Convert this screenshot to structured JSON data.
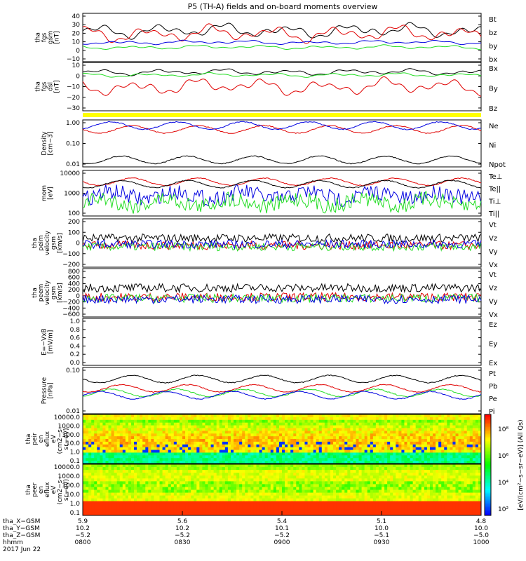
{
  "title": "P5 (TH-A) fields and on-board moments overview",
  "colors": {
    "black": "#000000",
    "red": "#e00000",
    "green": "#22dd22",
    "blue": "#0000e0",
    "yellow": "#ffff00"
  },
  "chart_data": [
    {
      "type": "line",
      "panel": "fgs_gsm",
      "ylabel": [
        "tha",
        "fgs",
        "gsm",
        "[nT]"
      ],
      "yticks": [
        "40",
        "30",
        "20",
        "10",
        "0",
        "−10"
      ],
      "ylim": [
        -10,
        40
      ],
      "series": [
        {
          "name": "Bt",
          "color": "#000000",
          "base": 22,
          "amp": 7
        },
        {
          "name": "bz",
          "color": "#e00000",
          "base": 19,
          "amp": 8
        },
        {
          "name": "by",
          "color": "#22dd22",
          "base": 5,
          "amp": 2
        },
        {
          "name": "bx",
          "color": "#0000e0",
          "base": 10,
          "amp": 2
        }
      ]
    },
    {
      "type": "line",
      "panel": "fgs_dsl",
      "ylabel": [
        "tha",
        "fgs",
        "dsl",
        "[nT]"
      ],
      "yticks": [
        "10",
        "0",
        "−10",
        "−20",
        "−30"
      ],
      "ylim": [
        -35,
        15
      ],
      "series": [
        {
          "name": "Bx",
          "color": "#000000",
          "base": 5,
          "amp": 3
        },
        {
          "name": "By",
          "color": "#22dd22",
          "base": 2,
          "amp": 2
        },
        {
          "name": "Bz",
          "color": "#e00000",
          "base": -10,
          "amp": 8
        }
      ]
    },
    {
      "type": "line",
      "panel": "density",
      "ylabel": [
        "Density",
        "[cm−3]"
      ],
      "yticks": [
        "1.00",
        "0.10",
        "0.01"
      ],
      "ylog": true,
      "series": [
        {
          "name": "Ne",
          "color": "#e00000"
        },
        {
          "name": "Ni",
          "color": "#000000"
        },
        {
          "name": "Npot",
          "color": "#0000e0"
        }
      ]
    },
    {
      "type": "line",
      "panel": "temperature",
      "ylabel": [
        "mom",
        "[eV]"
      ],
      "yticks": [
        "10000",
        "1000",
        "100"
      ],
      "ylog": true,
      "series": [
        {
          "name": "Te⊥",
          "color": "#e00000"
        },
        {
          "name": "Te||",
          "color": "#000000"
        },
        {
          "name": "Ti⊥",
          "color": "#0000e0"
        },
        {
          "name": "Ti||",
          "color": "#22dd22"
        }
      ]
    },
    {
      "type": "line",
      "panel": "peim_velocity",
      "ylabel": [
        "tha",
        "peim",
        "velocity",
        "gsm",
        "[km/s]"
      ],
      "yticks": [
        "200",
        "100",
        "0",
        "−100",
        "−200"
      ],
      "ylim": [
        -200,
        200
      ],
      "series": [
        {
          "name": "Vt",
          "color": "#000000",
          "base": 40
        },
        {
          "name": "Vz",
          "color": "#e00000",
          "base": -20
        },
        {
          "name": "Vy",
          "color": "#22dd22",
          "base": -30
        },
        {
          "name": "Vx",
          "color": "#0000e0",
          "base": -10
        }
      ]
    },
    {
      "type": "line",
      "panel": "peem_velocity",
      "ylabel": [
        "tha",
        "peem",
        "velocity",
        "gsm",
        "[km/s]"
      ],
      "yticks": [
        "800",
        "600",
        "400",
        "200",
        "0",
        "−200",
        "−400",
        "−600"
      ],
      "ylim": [
        -700,
        800
      ],
      "series": [
        {
          "name": "Vt",
          "color": "#000000",
          "base": 200
        },
        {
          "name": "Vz",
          "color": "#e00000",
          "base": -80
        },
        {
          "name": "Vy",
          "color": "#22dd22",
          "base": -120
        },
        {
          "name": "Vx",
          "color": "#0000e0",
          "base": -150
        }
      ]
    },
    {
      "type": "line",
      "panel": "efield",
      "ylabel": [
        "E=−VxB",
        "[mV/m]"
      ],
      "yticks": [
        "1.0",
        "0.8",
        "0.6",
        "0.4",
        "0.2",
        "0.0"
      ],
      "ylim": [
        0,
        1
      ],
      "series": [
        {
          "name": "Ez",
          "color": "#e00000"
        },
        {
          "name": "Ey",
          "color": "#22dd22"
        },
        {
          "name": "Ex",
          "color": "#0000e0"
        }
      ]
    },
    {
      "type": "line",
      "panel": "pressure",
      "ylabel": [
        "Pressure",
        "[nPa]"
      ],
      "yticks": [
        "0.10",
        "0.01"
      ],
      "ylog": true,
      "series": [
        {
          "name": "Pt",
          "color": "#000000"
        },
        {
          "name": "Pb",
          "color": "#e00000"
        },
        {
          "name": "Pe",
          "color": "#22dd22"
        },
        {
          "name": "Pi",
          "color": "#0000e0"
        }
      ]
    },
    {
      "type": "heatmap",
      "panel": "peir_spectrogram",
      "ylabel": [
        "tha",
        "peir",
        "en",
        "eflux",
        "eV",
        "(cm2−s−",
        "sr−eV)"
      ],
      "yticks": [
        "10000.0",
        "1000.0",
        "100.0",
        "10.0",
        "1.0",
        "0.1"
      ]
    },
    {
      "type": "heatmap",
      "panel": "peer_spectrogram",
      "ylabel": [
        "tha",
        "peer",
        "en",
        "eflux",
        "eV",
        "(cm2−s−",
        "sr−eV)"
      ],
      "yticks": [
        "10000.0",
        "1000.0",
        "100.0",
        "10.0",
        "1.0",
        "0.1"
      ]
    }
  ],
  "colorbar": {
    "ticks": [
      "10⁸",
      "10⁶",
      "10⁴",
      "10²"
    ],
    "label": "[eV/(cm²−s−sr−eV)] (All Qs)"
  },
  "xaxis": {
    "rows": [
      {
        "label": "tha_X−GSM",
        "values": [
          "5.9",
          "5.6",
          "5.4",
          "5.1",
          "4.8"
        ]
      },
      {
        "label": "tha_Y−GSM",
        "values": [
          "10.2",
          "10.2",
          "10.1",
          "10.0",
          "10.0"
        ]
      },
      {
        "label": "tha_Z−GSM",
        "values": [
          "−5.2",
          "−5.2",
          "−5.2",
          "−5.1",
          "−5.0"
        ]
      },
      {
        "label": "hhmm",
        "values": [
          "0800",
          "0830",
          "0900",
          "0930",
          "1000"
        ]
      }
    ],
    "date": "2017 Jun 22"
  }
}
